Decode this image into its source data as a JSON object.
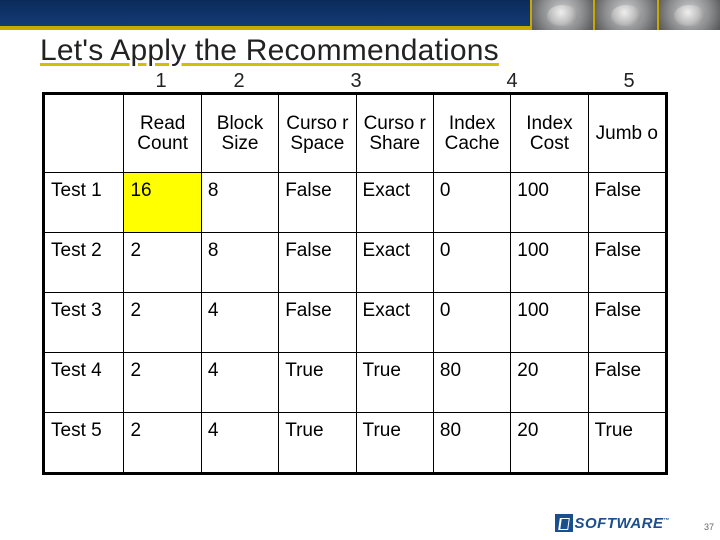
{
  "title": "Let's Apply the Recommendations",
  "col_numbers": [
    "1",
    "2",
    "3",
    "4",
    "5"
  ],
  "col_number_widths": [
    80,
    78,
    78,
    78,
    78,
    78,
    78,
    78
  ],
  "page_number": "37",
  "footer": {
    "brand": "SOFTWARE",
    "tm": "™"
  },
  "columns": {
    "c0": "",
    "c1": "Read Count",
    "c2": "Block Size",
    "c3": "Curso r Space",
    "c4": "Curso r Share",
    "c5": "Index Cache",
    "c6": "Index Cost",
    "c7": "Jumb o"
  },
  "col_widths_pct": [
    "12.8%",
    "12.46%",
    "12.46%",
    "12.46%",
    "12.46%",
    "12.46%",
    "12.46%",
    "12.46%"
  ],
  "rows": [
    {
      "label": "Test 1",
      "read": "16",
      "block": "8",
      "cspace": "False",
      "cshare": "Exact",
      "icache": "0",
      "icost": "100",
      "jumbo": "False"
    },
    {
      "label": "Test 2",
      "read": "2",
      "block": "8",
      "cspace": "False",
      "cshare": "Exact",
      "icache": "0",
      "icost": "100",
      "jumbo": "False"
    },
    {
      "label": "Test 3",
      "read": "2",
      "block": "4",
      "cspace": "False",
      "cshare": "Exact",
      "icache": "0",
      "icost": "100",
      "jumbo": "False"
    },
    {
      "label": "Test 4",
      "read": "2",
      "block": "4",
      "cspace": "True",
      "cshare": "True",
      "icache": "80",
      "icost": "20",
      "jumbo": "False"
    },
    {
      "label": "Test 5",
      "read": "2",
      "block": "4",
      "cspace": "True",
      "cshare": "True",
      "icache": "80",
      "icost": "20",
      "jumbo": "True"
    }
  ],
  "highlight": {
    "row": 0,
    "col": "read"
  },
  "colors": {
    "band_top": "#0b2b5a",
    "band_bottom": "#153d7a",
    "gold": "#c9a800",
    "highlight": "#ffff00",
    "text": "#222222",
    "border": "#000000",
    "logo_blue": "#1b4e8c"
  },
  "fonts": {
    "title_pt": 30,
    "cell_pt": 19,
    "colnum_pt": 20
  }
}
